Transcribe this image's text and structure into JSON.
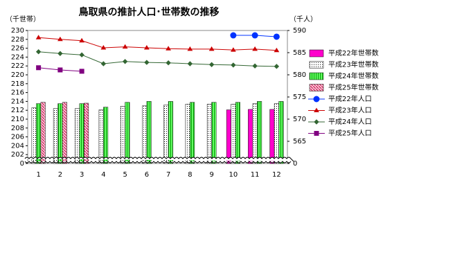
{
  "chart_data": {
    "type": "bar",
    "title": "鳥取県の推計人口･世帯数の推移",
    "y_label": "（千世帯）",
    "y2_label": "（千人）",
    "categories": [
      "1",
      "2",
      "3",
      "4",
      "5",
      "6",
      "7",
      "8",
      "9",
      "10",
      "11",
      "12"
    ],
    "ylim": [
      0,
      230
    ],
    "yticks": [
      0,
      202,
      204,
      206,
      208,
      210,
      212,
      214,
      216,
      218,
      220,
      222,
      224,
      226,
      228,
      230
    ],
    "y2lim": [
      0,
      590
    ],
    "y2ticks": [
      0,
      565,
      570,
      575,
      580,
      585,
      590
    ],
    "axis_break": true,
    "legend": "right",
    "series": [
      {
        "name": "平成22年世帯数",
        "type": "bar",
        "color": "#ff00cc",
        "pattern": "solid",
        "values": [
          null,
          null,
          null,
          null,
          null,
          null,
          null,
          null,
          null,
          212.1,
          212.2,
          212.2
        ]
      },
      {
        "name": "平成23年世帯数",
        "type": "bar",
        "color": "#ffffff",
        "pattern": "dots",
        "values": [
          212.6,
          212.4,
          212.4,
          212.1,
          212.9,
          213.0,
          213.2,
          213.4,
          213.4,
          213.4,
          213.5,
          213.5
        ]
      },
      {
        "name": "平成24年世帯数",
        "type": "bar",
        "color": "#66ff66",
        "pattern": "stripes",
        "values": [
          213.5,
          213.5,
          213.5,
          212.7,
          213.8,
          214.0,
          214.0,
          213.8,
          213.8,
          213.8,
          214.0,
          214.0
        ]
      },
      {
        "name": "平成25年世帯数",
        "type": "bar",
        "color": "#ff6699",
        "pattern": "hatch",
        "values": [
          213.8,
          213.8,
          213.6,
          null,
          null,
          null,
          null,
          null,
          null,
          null,
          null,
          null
        ]
      },
      {
        "name": "平成22年人口",
        "type": "line",
        "axis": "y2",
        "color": "#0033ff",
        "marker": "circle",
        "values": [
          null,
          null,
          null,
          null,
          null,
          null,
          null,
          null,
          null,
          588.9,
          588.9,
          588.6
        ]
      },
      {
        "name": "平成23年人口",
        "type": "line",
        "axis": "y2",
        "color": "#cc0000",
        "marker": "triangle",
        "values": [
          588.4,
          588.0,
          587.7,
          586.1,
          586.3,
          586.1,
          585.9,
          585.8,
          585.8,
          585.6,
          585.8,
          585.5
        ]
      },
      {
        "name": "平成24年人口",
        "type": "line",
        "axis": "y2",
        "color": "#336633",
        "marker": "diamond",
        "values": [
          585.2,
          584.8,
          584.5,
          582.5,
          583.0,
          582.8,
          582.7,
          582.5,
          582.3,
          582.2,
          582.0,
          581.9
        ]
      },
      {
        "name": "平成25年人口",
        "type": "line",
        "axis": "y2",
        "color": "#800080",
        "marker": "square",
        "values": [
          581.6,
          581.1,
          580.8,
          null,
          null,
          null,
          null,
          null,
          null,
          null,
          null,
          null
        ]
      }
    ]
  }
}
